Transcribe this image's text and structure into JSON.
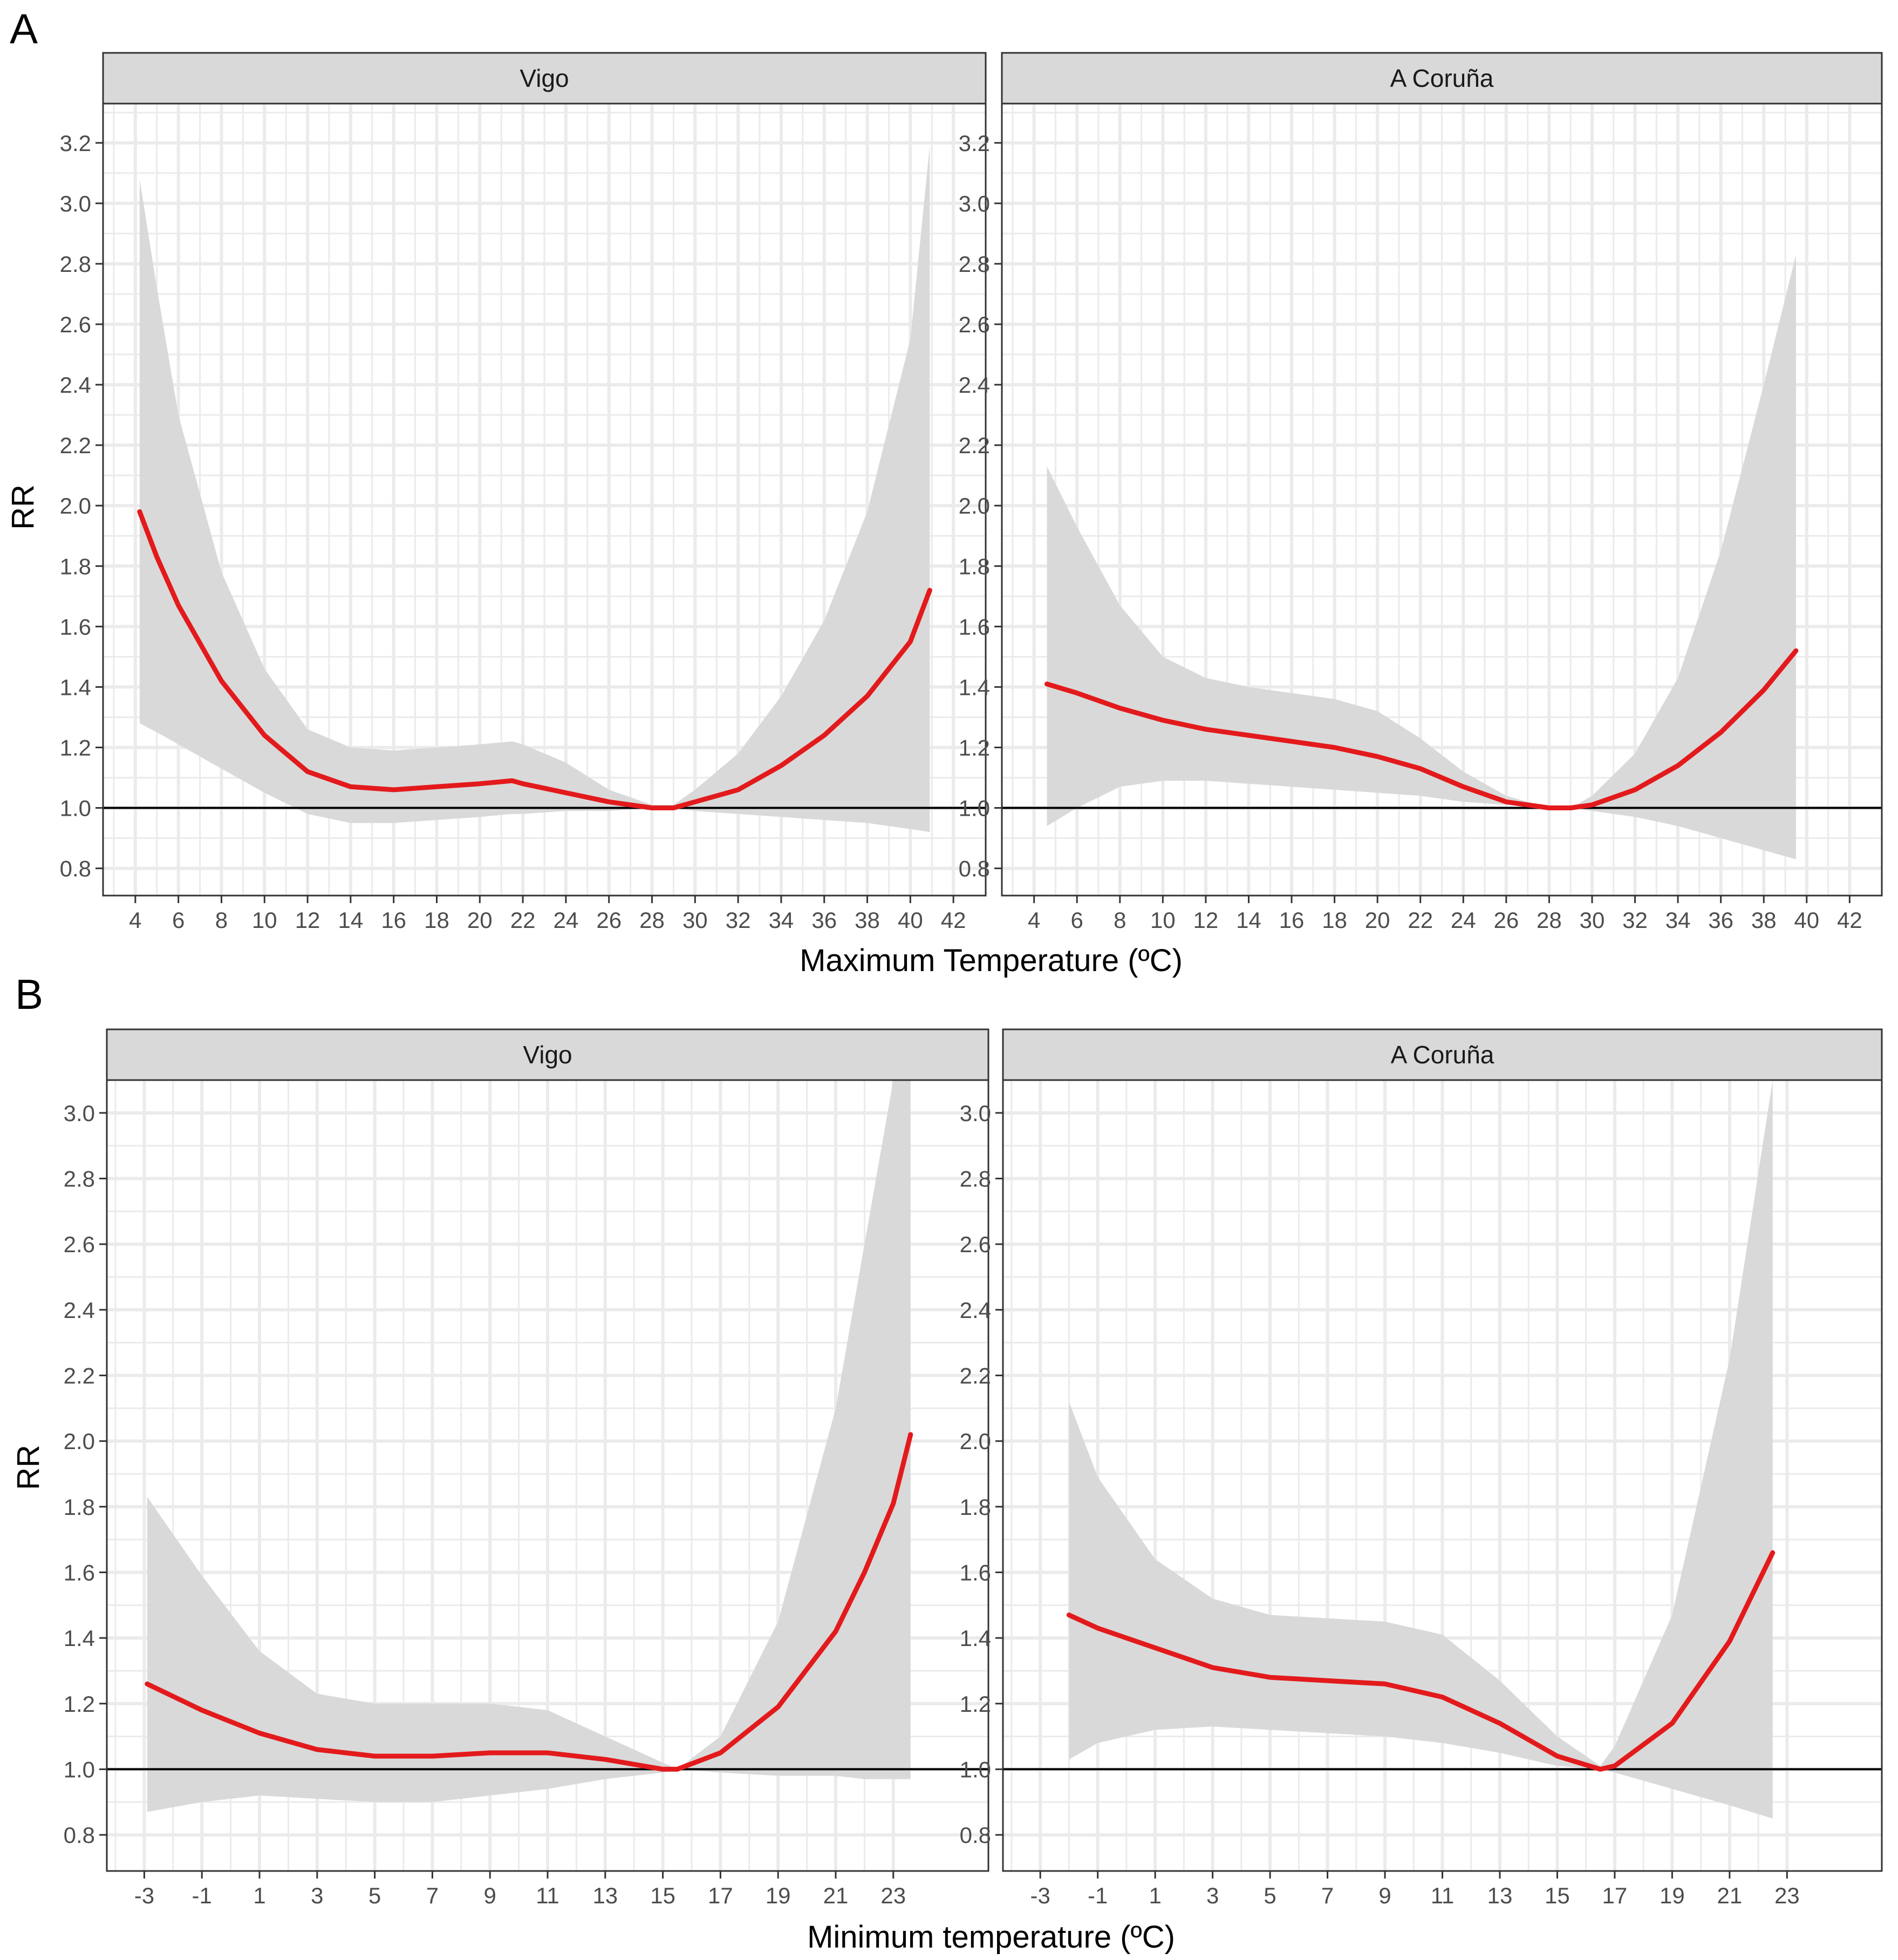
{
  "figure": {
    "panels": [
      {
        "letter": "A",
        "ylabel": "RR",
        "xlabel": "Maximum Temperature (ºC)"
      },
      {
        "letter": "B",
        "ylabel": "RR",
        "xlabel": "Minimum temperature (ºC)"
      }
    ]
  },
  "colors": {
    "curve": "#e31a1c",
    "ribbon": "#d9d9d9",
    "strip": "#d9d9d9",
    "reference_line": "#000000",
    "grid": "#ebebeb"
  },
  "chart_data": [
    {
      "type": "line",
      "panel": "A",
      "facet": "Vigo",
      "xlabel": "Maximum Temperature (ºC)",
      "ylabel": "RR",
      "xlim": [
        2.5,
        43.5
      ],
      "ylim": [
        0.71,
        3.33
      ],
      "x_ticks": [
        4,
        6,
        8,
        10,
        12,
        14,
        16,
        18,
        20,
        22,
        24,
        26,
        28,
        30,
        32,
        34,
        36,
        38,
        40,
        42
      ],
      "y_ticks": [
        0.8,
        1.0,
        1.2,
        1.4,
        1.6,
        1.8,
        2.0,
        2.2,
        2.4,
        2.6,
        2.8,
        3.0,
        3.2
      ],
      "reference_line": 1.0,
      "grid": true,
      "series": [
        {
          "x": [
            4.2,
            5,
            6,
            8,
            10,
            12,
            14,
            16,
            18,
            20,
            21.5,
            22,
            24,
            26,
            28,
            29,
            30,
            32,
            34,
            36,
            38,
            40,
            40.9
          ],
          "y": [
            1.98,
            1.83,
            1.67,
            1.42,
            1.24,
            1.12,
            1.07,
            1.06,
            1.07,
            1.08,
            1.09,
            1.08,
            1.05,
            1.02,
            1.0,
            1.0,
            1.02,
            1.06,
            1.14,
            1.24,
            1.37,
            1.55,
            1.72
          ],
          "lower": [
            1.28,
            1.25,
            1.21,
            1.13,
            1.05,
            0.98,
            0.95,
            0.95,
            0.96,
            0.97,
            0.98,
            0.98,
            0.99,
            0.99,
            1.0,
            1.0,
            0.99,
            0.98,
            0.97,
            0.96,
            0.95,
            0.93,
            0.92
          ],
          "upper": [
            3.08,
            2.72,
            2.3,
            1.78,
            1.46,
            1.26,
            1.2,
            1.19,
            1.2,
            1.21,
            1.22,
            1.21,
            1.15,
            1.06,
            1.01,
            1.01,
            1.06,
            1.18,
            1.37,
            1.62,
            1.98,
            2.55,
            3.19
          ]
        }
      ]
    },
    {
      "type": "line",
      "panel": "A",
      "facet": "A Coruña",
      "xlabel": "Maximum Temperature (ºC)",
      "ylabel": "RR",
      "xlim": [
        2.5,
        43.5
      ],
      "ylim": [
        0.71,
        3.33
      ],
      "x_ticks": [
        4,
        6,
        8,
        10,
        12,
        14,
        16,
        18,
        20,
        22,
        24,
        26,
        28,
        30,
        32,
        34,
        36,
        38,
        40,
        42
      ],
      "y_ticks": [
        0.8,
        1.0,
        1.2,
        1.4,
        1.6,
        1.8,
        2.0,
        2.2,
        2.4,
        2.6,
        2.8,
        3.0,
        3.2
      ],
      "reference_line": 1.0,
      "grid": true,
      "series": [
        {
          "x": [
            4.6,
            6,
            8,
            10,
            12,
            14,
            16,
            18,
            20,
            22,
            24,
            26,
            28,
            29,
            30,
            32,
            34,
            36,
            38,
            39.5
          ],
          "y": [
            1.41,
            1.38,
            1.33,
            1.29,
            1.26,
            1.24,
            1.22,
            1.2,
            1.17,
            1.13,
            1.07,
            1.02,
            1.0,
            1.0,
            1.01,
            1.06,
            1.14,
            1.25,
            1.39,
            1.52
          ],
          "lower": [
            0.94,
            1.0,
            1.07,
            1.09,
            1.09,
            1.08,
            1.07,
            1.06,
            1.05,
            1.04,
            1.02,
            1.01,
            1.0,
            1.0,
            0.99,
            0.97,
            0.94,
            0.9,
            0.86,
            0.83
          ],
          "upper": [
            2.13,
            1.93,
            1.67,
            1.5,
            1.43,
            1.4,
            1.38,
            1.36,
            1.32,
            1.23,
            1.12,
            1.04,
            1.0,
            1.0,
            1.04,
            1.18,
            1.43,
            1.85,
            2.4,
            2.83
          ]
        }
      ]
    },
    {
      "type": "line",
      "panel": "B",
      "facet": "Vigo",
      "xlabel": "Minimum temperature (ºC)",
      "ylabel": "RR",
      "xlim": [
        -4.3,
        26.3
      ],
      "ylim": [
        0.69,
        3.1
      ],
      "x_ticks": [
        -3,
        -1,
        1,
        3,
        5,
        7,
        9,
        11,
        13,
        15,
        17,
        19,
        21,
        23
      ],
      "y_ticks": [
        0.8,
        1.0,
        1.2,
        1.4,
        1.6,
        1.8,
        2.0,
        2.2,
        2.4,
        2.6,
        2.8,
        3.0
      ],
      "reference_line": 1.0,
      "grid": true,
      "series": [
        {
          "x": [
            -2.9,
            -1,
            1,
            3,
            5,
            7,
            9,
            11,
            13,
            15,
            15.5,
            17,
            19,
            21,
            22,
            23,
            23.6
          ],
          "y": [
            1.26,
            1.18,
            1.11,
            1.06,
            1.04,
            1.04,
            1.05,
            1.05,
            1.03,
            1.0,
            1.0,
            1.05,
            1.19,
            1.42,
            1.6,
            1.81,
            2.02
          ],
          "lower": [
            0.87,
            0.9,
            0.92,
            0.91,
            0.9,
            0.9,
            0.92,
            0.94,
            0.97,
            0.99,
            1.0,
            0.99,
            0.98,
            0.98,
            0.97,
            0.97,
            0.97
          ],
          "upper": [
            1.83,
            1.59,
            1.36,
            1.23,
            1.2,
            1.2,
            1.2,
            1.18,
            1.1,
            1.02,
            1.0,
            1.1,
            1.45,
            2.1,
            2.6,
            3.1,
            3.1
          ]
        }
      ]
    },
    {
      "type": "line",
      "panel": "B",
      "facet": "A Coruña",
      "xlabel": "Minimum temperature (ºC)",
      "ylabel": "RR",
      "xlim": [
        -4.3,
        26.3
      ],
      "ylim": [
        0.69,
        3.1
      ],
      "x_ticks": [
        -3,
        -1,
        1,
        3,
        5,
        7,
        9,
        11,
        13,
        15,
        17,
        19,
        21,
        23
      ],
      "y_ticks": [
        0.8,
        1.0,
        1.2,
        1.4,
        1.6,
        1.8,
        2.0,
        2.2,
        2.4,
        2.6,
        2.8,
        3.0
      ],
      "reference_line": 1.0,
      "grid": true,
      "series": [
        {
          "x": [
            -2.0,
            -1,
            1,
            3,
            5,
            7,
            9,
            11,
            13,
            15,
            16.5,
            17,
            19,
            21,
            22.5
          ],
          "y": [
            1.47,
            1.43,
            1.37,
            1.31,
            1.28,
            1.27,
            1.26,
            1.22,
            1.14,
            1.04,
            1.0,
            1.01,
            1.14,
            1.39,
            1.66
          ],
          "lower": [
            1.03,
            1.08,
            1.12,
            1.13,
            1.12,
            1.11,
            1.1,
            1.08,
            1.05,
            1.01,
            1.0,
            0.99,
            0.94,
            0.89,
            0.85
          ],
          "upper": [
            2.12,
            1.89,
            1.64,
            1.52,
            1.47,
            1.46,
            1.45,
            1.41,
            1.27,
            1.1,
            1.01,
            1.07,
            1.47,
            2.25,
            3.1
          ]
        }
      ]
    }
  ]
}
